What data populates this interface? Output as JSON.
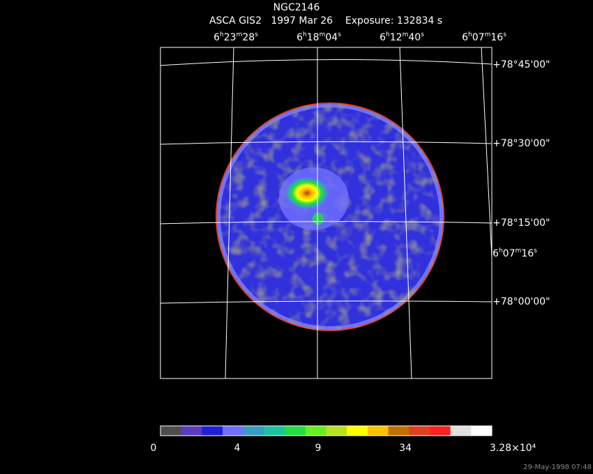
{
  "title": "NGC2146",
  "subtitle": "ASCA GIS2   1997 Mar 26    Exposure: 132834 s",
  "ra_labels": [
    "6h23m28s",
    "6h18m04s",
    "6h12m40s",
    "6h07m16s"
  ],
  "dec_labels": [
    "+78°45'00\"",
    "+78°30'00\"",
    "+78°15'00\"",
    "+78°00'00\""
  ],
  "side_label": "6h07m16s",
  "colorbar": {
    "colors": [
      "#4d4d4d",
      "#5b3bbf",
      "#1f1fd6",
      "#7070ff",
      "#3a9cc0",
      "#1fc0a0",
      "#22dd44",
      "#66ee22",
      "#b8e020",
      "#ffff00",
      "#ffc000",
      "#c07000",
      "#e04020",
      "#ff2020",
      "#e0e0e0",
      "#ffffff"
    ],
    "labels": [
      "0",
      "4",
      "9",
      "34",
      "3.28×10⁴"
    ]
  },
  "timestamp": "29-May-1998 07:48"
}
